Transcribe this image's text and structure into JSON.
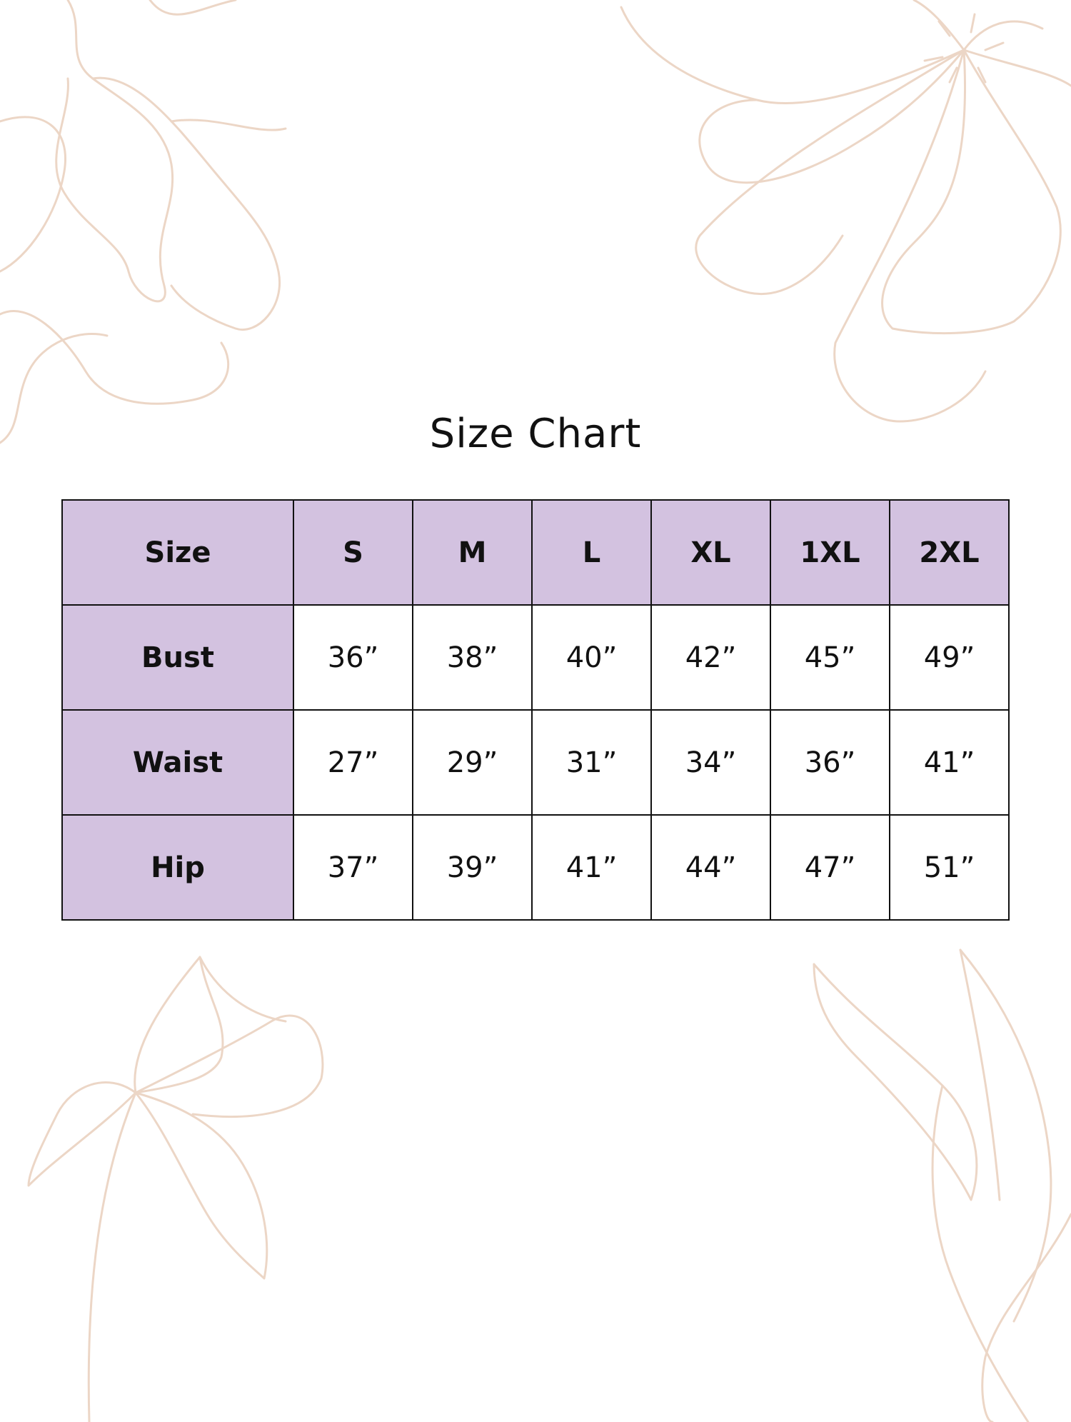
{
  "title": "Size Chart",
  "colors": {
    "header_fill": "#d3c2e0",
    "decor_line": "#ecd6c6",
    "border": "#111111"
  },
  "decoration": "floral line drawings",
  "table": {
    "header": [
      "Size",
      "S",
      "M",
      "L",
      "XL",
      "1XL",
      "2XL"
    ],
    "rows": [
      {
        "label": "Bust",
        "values": [
          "36”",
          "38”",
          "40”",
          "42”",
          "45”",
          "49”"
        ]
      },
      {
        "label": "Waist",
        "values": [
          "27”",
          "29”",
          "31”",
          "34”",
          "36”",
          "41”"
        ]
      },
      {
        "label": "Hip",
        "values": [
          "37”",
          "39”",
          "41”",
          "44”",
          "47”",
          "51”"
        ]
      }
    ]
  }
}
